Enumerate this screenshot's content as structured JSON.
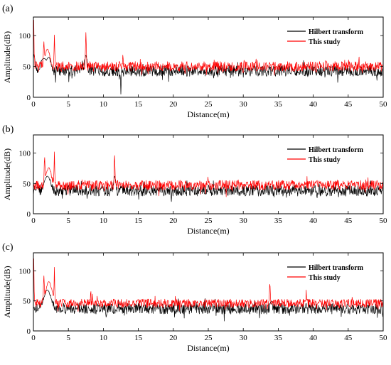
{
  "chart_data": [
    {
      "type": "line",
      "panel_label": "(a)",
      "xlabel": "Distance(m)",
      "ylabel": "Amplitude(dB)",
      "xlim": [
        0,
        50
      ],
      "ylim": [
        0,
        130
      ],
      "xticks": [
        0,
        5,
        10,
        15,
        20,
        25,
        30,
        35,
        40,
        45,
        50
      ],
      "yticks": [
        0,
        50,
        100
      ],
      "legend_position": "top-right",
      "series": [
        {
          "name": "Hilbert transform",
          "color": "#000000",
          "baseline": 43,
          "noise": 9,
          "peaks": [
            {
              "x": 0.1,
              "y": 70,
              "width": 0.15
            },
            {
              "x": 1.5,
              "y": 63,
              "width": 0.6
            },
            {
              "x": 2.2,
              "y": 65,
              "width": 0.4
            },
            {
              "x": 7.5,
              "y": 68,
              "width": 0.25
            },
            {
              "x": 12.5,
              "y": 5,
              "width": 0.05
            }
          ]
        },
        {
          "name": "This study",
          "color": "#ff0000",
          "baseline": 50,
          "noise": 8,
          "peaks": [
            {
              "x": 0.05,
              "y": 126,
              "width": 0.05
            },
            {
              "x": 1.5,
              "y": 97,
              "width": 0.08
            },
            {
              "x": 2.0,
              "y": 78,
              "width": 0.5
            },
            {
              "x": 3.0,
              "y": 101,
              "width": 0.06
            },
            {
              "x": 7.5,
              "y": 105,
              "width": 0.08
            },
            {
              "x": 12.8,
              "y": 72,
              "width": 0.05
            }
          ]
        }
      ]
    },
    {
      "type": "line",
      "panel_label": "(b)",
      "xlabel": "Distance(m)",
      "ylabel": "Amplitude(dB)",
      "xlim": [
        0,
        50
      ],
      "ylim": [
        0,
        130
      ],
      "xticks": [
        0,
        5,
        10,
        15,
        20,
        25,
        30,
        35,
        40,
        45,
        50
      ],
      "yticks": [
        0,
        50,
        100
      ],
      "legend_position": "top-right",
      "series": [
        {
          "name": "Hilbert transform",
          "color": "#000000",
          "baseline": 38,
          "noise": 9,
          "peaks": [
            {
              "x": 2.0,
              "y": 62,
              "width": 0.6
            },
            {
              "x": 11.6,
              "y": 62,
              "width": 0.2
            }
          ]
        },
        {
          "name": "This study",
          "color": "#ff0000",
          "baseline": 47,
          "noise": 8,
          "peaks": [
            {
              "x": 1.6,
              "y": 99,
              "width": 0.08
            },
            {
              "x": 2.2,
              "y": 76,
              "width": 0.5
            },
            {
              "x": 3.0,
              "y": 102,
              "width": 0.06
            },
            {
              "x": 11.6,
              "y": 97,
              "width": 0.08
            }
          ]
        }
      ]
    },
    {
      "type": "line",
      "panel_label": "(c)",
      "xlabel": "Distance(m)",
      "ylabel": "Amplitude(dB)",
      "xlim": [
        0,
        50
      ],
      "ylim": [
        0,
        130
      ],
      "xticks": [
        0,
        5,
        10,
        15,
        20,
        25,
        30,
        35,
        40,
        45,
        50
      ],
      "yticks": [
        0,
        50,
        100
      ],
      "legend_position": "top-right",
      "series": [
        {
          "name": "Hilbert transform",
          "color": "#000000",
          "baseline": 37,
          "noise": 9,
          "peaks": [
            {
              "x": 2.0,
              "y": 68,
              "width": 0.7
            },
            {
              "x": 34.0,
              "y": 50,
              "width": 0.2
            }
          ]
        },
        {
          "name": "This study",
          "color": "#ff0000",
          "baseline": 46,
          "noise": 7,
          "peaks": [
            {
              "x": 0.05,
              "y": 121,
              "width": 0.05
            },
            {
              "x": 1.5,
              "y": 95,
              "width": 0.08
            },
            {
              "x": 2.2,
              "y": 82,
              "width": 0.6
            },
            {
              "x": 3.0,
              "y": 106,
              "width": 0.06
            },
            {
              "x": 8.2,
              "y": 70,
              "width": 0.05
            },
            {
              "x": 33.8,
              "y": 80,
              "width": 0.08
            },
            {
              "x": 39.0,
              "y": 68,
              "width": 0.05
            }
          ]
        }
      ]
    }
  ]
}
